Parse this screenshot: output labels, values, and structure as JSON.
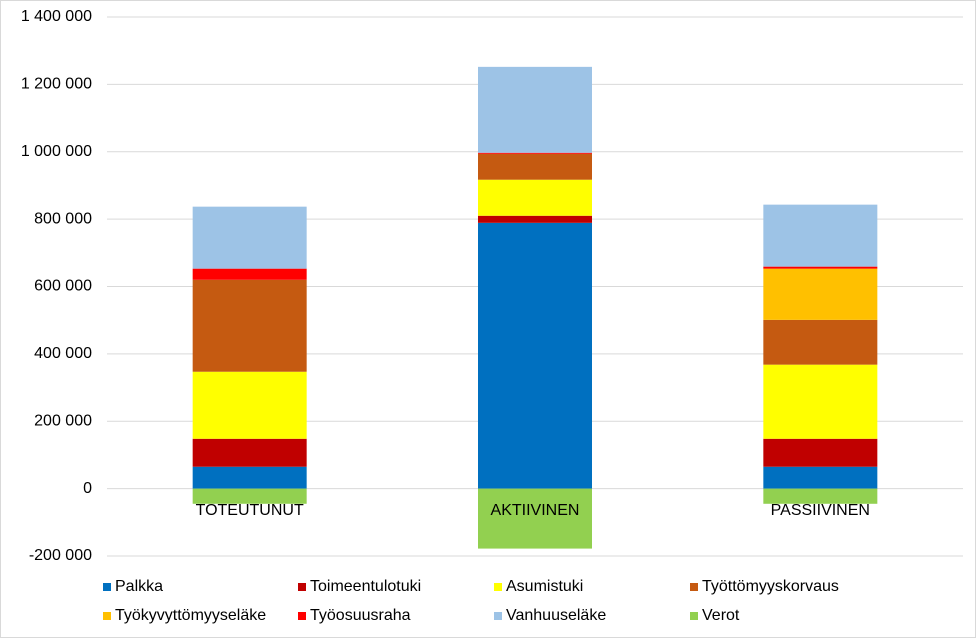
{
  "chart_data": {
    "type": "stacked-bar",
    "categories": [
      "TOTEUTUNUT",
      "AKTIIVINEN",
      "PASSIIVINEN"
    ],
    "series": [
      {
        "name": "Palkka",
        "color": "#0070c0",
        "values": [
          65000,
          789000,
          65000
        ]
      },
      {
        "name": "Toimeentulotuki",
        "color": "#c00000",
        "values": [
          83000,
          21000,
          83000
        ]
      },
      {
        "name": "Asumistuki",
        "color": "#ffff00",
        "values": [
          199000,
          107000,
          220000
        ]
      },
      {
        "name": "Työttömyyskorvaus",
        "color": "#c55a11",
        "values": [
          273000,
          77000,
          133000
        ]
      },
      {
        "name": "Työkyvyttömyyseläke",
        "color": "#ffc000",
        "values": [
          0,
          0,
          152000
        ]
      },
      {
        "name": "Työosuusraha",
        "color": "#ff0000",
        "values": [
          33000,
          3000,
          6000
        ]
      },
      {
        "name": "Vanhuuseläke",
        "color": "#9dc3e6",
        "values": [
          184000,
          255000,
          184000
        ]
      },
      {
        "name": "Verot",
        "color": "#92d050",
        "values": [
          -45000,
          -178000,
          -45000
        ]
      }
    ],
    "ylim": [
      -200000,
      1400000
    ],
    "yticks": [
      {
        "value": -200000,
        "label": "-200 000"
      },
      0,
      {
        "value": 200000,
        "label": "200 000"
      },
      {
        "value": 400000,
        "label": "400 000"
      },
      {
        "value": 600000,
        "label": "600 000"
      },
      {
        "value": 800000,
        "label": "800 000"
      },
      {
        "value": 1000000,
        "label": "1 000 000"
      },
      {
        "value": 1200000,
        "label": "1 200 000"
      },
      {
        "value": 1400000,
        "label": "1 400 000"
      }
    ],
    "grid": true,
    "legend": "bottom"
  }
}
